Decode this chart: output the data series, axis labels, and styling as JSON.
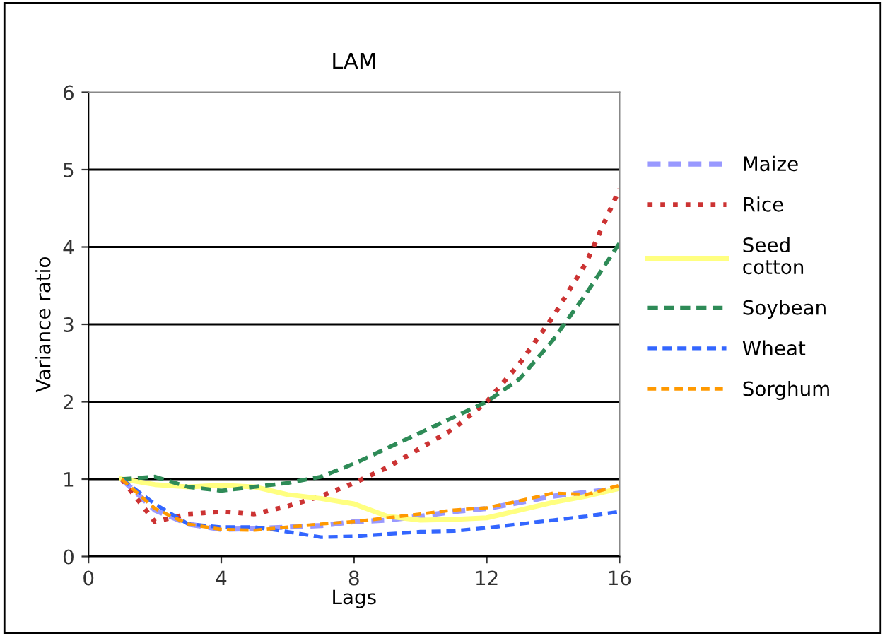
{
  "chart_data": {
    "type": "line",
    "title": "LAM",
    "xlabel": "Lags",
    "ylabel": "Variance ratio",
    "x": [
      1,
      2,
      3,
      4,
      5,
      6,
      7,
      8,
      9,
      10,
      11,
      12,
      13,
      14,
      15,
      16
    ],
    "xlim": [
      0,
      16
    ],
    "xticks": [
      0,
      4,
      8,
      12,
      16
    ],
    "ylim": [
      0,
      6
    ],
    "yticks": [
      0,
      1,
      2,
      3,
      4,
      5,
      6
    ],
    "grid": "y",
    "legend": "right",
    "marker": "none",
    "series": [
      {
        "name": "Maize",
        "color": "#9999ff",
        "line_style": "dashed",
        "values": [
          1.0,
          0.6,
          0.42,
          0.35,
          0.36,
          0.38,
          0.4,
          0.45,
          0.47,
          0.52,
          0.58,
          0.62,
          0.7,
          0.78,
          0.83,
          0.88
        ]
      },
      {
        "name": "Rice",
        "color": "#cc3333",
        "line_style": "dotted",
        "values": [
          1.0,
          0.45,
          0.55,
          0.58,
          0.55,
          0.65,
          0.78,
          0.95,
          1.15,
          1.4,
          1.65,
          2.0,
          2.5,
          3.1,
          3.8,
          4.75
        ]
      },
      {
        "name": "Seed\ncotton",
        "color": "#ffff80",
        "line_style": "solid",
        "values": [
          1.0,
          0.93,
          0.9,
          0.92,
          0.9,
          0.8,
          0.75,
          0.68,
          0.52,
          0.47,
          0.48,
          0.5,
          0.6,
          0.7,
          0.78,
          0.88
        ]
      },
      {
        "name": "Soybean",
        "color": "#2e8b57",
        "line_style": "dashed",
        "values": [
          1.0,
          1.03,
          0.9,
          0.85,
          0.9,
          0.95,
          1.03,
          1.2,
          1.4,
          1.6,
          1.8,
          2.0,
          2.3,
          2.8,
          3.4,
          4.05
        ]
      },
      {
        "name": "Wheat",
        "color": "#3366ff",
        "line_style": "dashed",
        "values": [
          1.0,
          0.68,
          0.42,
          0.38,
          0.38,
          0.32,
          0.25,
          0.26,
          0.29,
          0.32,
          0.33,
          0.37,
          0.42,
          0.47,
          0.52,
          0.58
        ]
      },
      {
        "name": "Sorghum",
        "color": "#ff9900",
        "line_style": "dashed",
        "values": [
          1.0,
          0.62,
          0.42,
          0.35,
          0.34,
          0.38,
          0.42,
          0.45,
          0.5,
          0.55,
          0.6,
          0.63,
          0.72,
          0.82,
          0.8,
          0.92
        ]
      }
    ]
  }
}
